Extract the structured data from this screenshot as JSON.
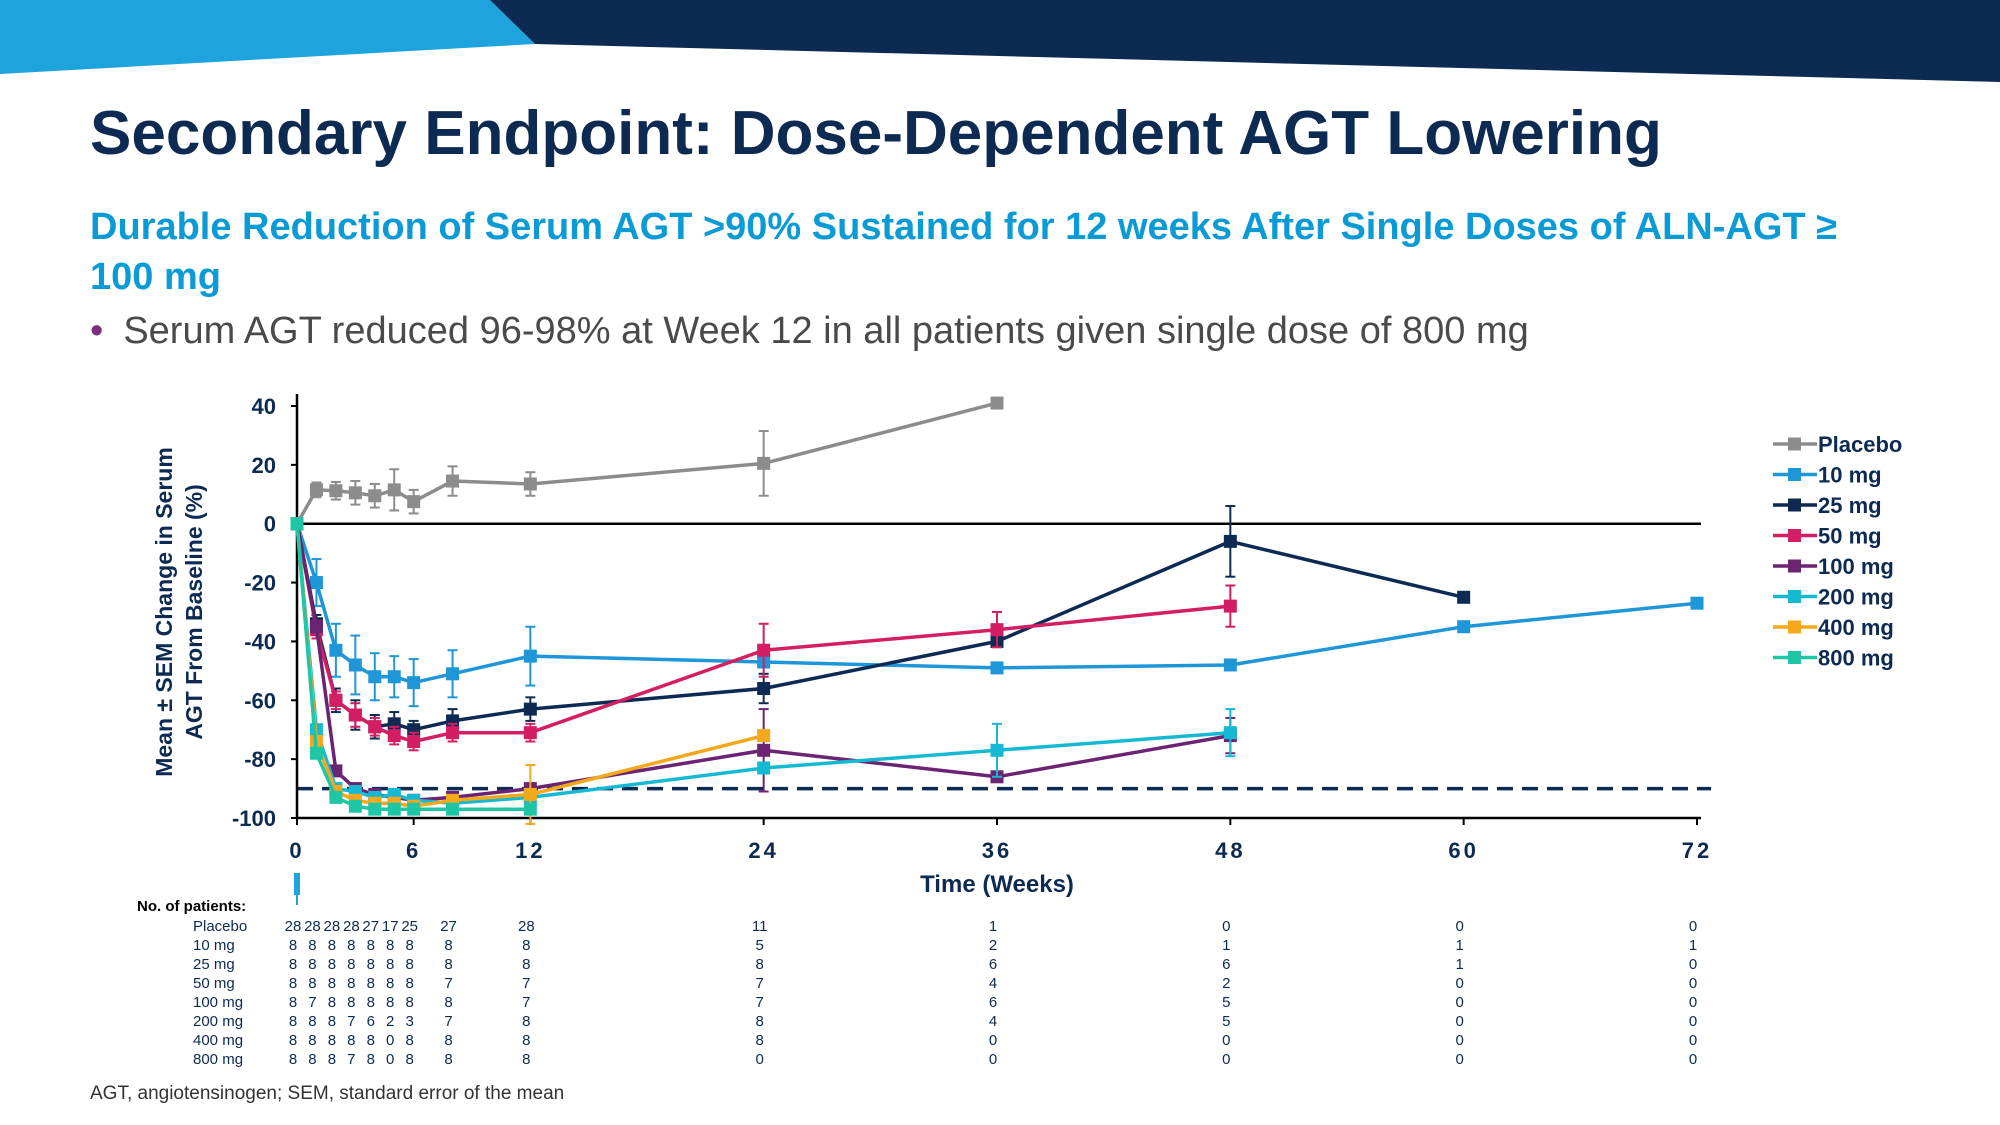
{
  "title": "Secondary Endpoint: Dose-Dependent AGT Lowering",
  "subtitle": "Durable Reduction of Serum AGT >90% Sustained for 12 weeks After Single Doses of ALN-AGT ≥ 100 mg",
  "bullet": "Serum AGT reduced 96-98% at Week 12 in all patients given single dose of 800 mg",
  "footnote": "AGT, angiotensinogen; SEM, standard error of the mean",
  "colors": {
    "banner_dark": "#0d2a52",
    "banner_light": "#1fa3dc",
    "title": "#0d2a52",
    "subtitle": "#0a9bd6",
    "bullet_dot": "#7b2d7e"
  },
  "chart_data": {
    "type": "line",
    "title": "",
    "xlabel": "Time (Weeks)",
    "ylabel_lines": [
      "Mean ± SEM Change in Serum",
      "AGT  From Baseline (%)"
    ],
    "xlim": [
      0,
      72
    ],
    "ylim": [
      -100,
      40
    ],
    "x_ticks": [
      0,
      6,
      12,
      24,
      36,
      48,
      60,
      72
    ],
    "y_ticks": [
      40,
      20,
      0,
      -20,
      -40,
      -60,
      -80,
      -100
    ],
    "reference_lines": [
      {
        "y": 0,
        "style": "solid"
      },
      {
        "y": -90,
        "style": "dashed"
      }
    ],
    "legend_position": "right",
    "series": [
      {
        "name": "Placebo",
        "color": "#8c8c8c",
        "points": [
          [
            0,
            0,
            0
          ],
          [
            1,
            11.5,
            2.5
          ],
          [
            2,
            11.2,
            3
          ],
          [
            3,
            10.5,
            4
          ],
          [
            4,
            9.5,
            4
          ],
          [
            5,
            11.5,
            7
          ],
          [
            6,
            7.5,
            4
          ],
          [
            8,
            14.5,
            5
          ],
          [
            12,
            13.5,
            4
          ],
          [
            24,
            20.5,
            11
          ],
          [
            36,
            41,
            0
          ]
        ]
      },
      {
        "name": "10 mg",
        "color": "#1e96d8",
        "points": [
          [
            0,
            0,
            0
          ],
          [
            1,
            -20,
            8
          ],
          [
            2,
            -43,
            9
          ],
          [
            3,
            -48,
            10
          ],
          [
            4,
            -52,
            8
          ],
          [
            5,
            -52,
            7
          ],
          [
            6,
            -54,
            8
          ],
          [
            8,
            -51,
            8
          ],
          [
            12,
            -45,
            10
          ],
          [
            24,
            -47,
            0
          ],
          [
            36,
            -49,
            0
          ],
          [
            48,
            -48,
            0
          ],
          [
            60,
            -35,
            0
          ],
          [
            72,
            -27,
            0
          ]
        ]
      },
      {
        "name": "25 mg",
        "color": "#0d2a52",
        "points": [
          [
            0,
            0,
            0
          ],
          [
            1,
            -34,
            3
          ],
          [
            2,
            -60,
            4
          ],
          [
            3,
            -65,
            5
          ],
          [
            4,
            -69,
            4
          ],
          [
            5,
            -68,
            4
          ],
          [
            6,
            -70,
            3
          ],
          [
            8,
            -67,
            4
          ],
          [
            12,
            -63,
            4
          ],
          [
            24,
            -56,
            5
          ],
          [
            36,
            -40,
            0
          ],
          [
            48,
            -6,
            12
          ],
          [
            60,
            -25,
            0
          ]
        ]
      },
      {
        "name": "50 mg",
        "color": "#d41e64",
        "points": [
          [
            0,
            0,
            0
          ],
          [
            1,
            -36,
            3
          ],
          [
            2,
            -60,
            3
          ],
          [
            3,
            -65,
            4
          ],
          [
            4,
            -69,
            3
          ],
          [
            5,
            -72,
            3
          ],
          [
            6,
            -74,
            3
          ],
          [
            8,
            -71,
            3
          ],
          [
            12,
            -71,
            3
          ],
          [
            24,
            -43,
            9
          ],
          [
            36,
            -36,
            6
          ],
          [
            48,
            -28,
            7
          ]
        ]
      },
      {
        "name": "100 mg",
        "color": "#6b2472",
        "points": [
          [
            0,
            0,
            0
          ],
          [
            1,
            -35,
            0
          ],
          [
            2,
            -84,
            0
          ],
          [
            3,
            -90,
            0
          ],
          [
            4,
            -92,
            0
          ],
          [
            5,
            -93,
            0
          ],
          [
            6,
            -94,
            0
          ],
          [
            8,
            -93,
            0
          ],
          [
            12,
            -90,
            0
          ],
          [
            24,
            -77,
            14
          ],
          [
            36,
            -86,
            0
          ],
          [
            48,
            -72,
            6
          ]
        ]
      },
      {
        "name": "200 mg",
        "color": "#16b9d4",
        "points": [
          [
            0,
            0,
            0
          ],
          [
            1,
            -70,
            0
          ],
          [
            2,
            -90,
            0
          ],
          [
            3,
            -91,
            0
          ],
          [
            4,
            -93,
            0
          ],
          [
            5,
            -92,
            0
          ],
          [
            6,
            -94,
            0
          ],
          [
            8,
            -95,
            0
          ],
          [
            12,
            -93,
            0
          ],
          [
            24,
            -83,
            0
          ],
          [
            36,
            -77,
            9
          ],
          [
            48,
            -71,
            8
          ]
        ]
      },
      {
        "name": "400 mg",
        "color": "#f5a81c",
        "points": [
          [
            0,
            0,
            0
          ],
          [
            1,
            -74,
            0
          ],
          [
            2,
            -91,
            0
          ],
          [
            3,
            -94,
            0
          ],
          [
            4,
            -95,
            0
          ],
          [
            5,
            -95,
            0
          ],
          [
            6,
            -96,
            0
          ],
          [
            8,
            -94,
            0
          ],
          [
            12,
            -92,
            10
          ],
          [
            24,
            -72,
            0
          ]
        ]
      },
      {
        "name": "800 mg",
        "color": "#1fc6a6",
        "points": [
          [
            0,
            0,
            0
          ],
          [
            1,
            -78,
            0
          ],
          [
            2,
            -93,
            0
          ],
          [
            3,
            -96,
            0
          ],
          [
            4,
            -97,
            0
          ],
          [
            5,
            -97,
            0
          ],
          [
            6,
            -97,
            0
          ],
          [
            8,
            -97,
            0
          ],
          [
            12,
            -97,
            0
          ]
        ]
      }
    ],
    "patients_table": {
      "header": "No. of patients:",
      "columns": [
        "0",
        "1",
        "2",
        "3",
        "4",
        "5",
        "6",
        "8",
        "12",
        "24",
        "36",
        "48",
        "60",
        "72"
      ],
      "rows": [
        {
          "label": "Placebo",
          "values": [
            "28",
            "28",
            "28",
            "28",
            "27",
            "17",
            "25",
            "27",
            "28",
            "11",
            "1",
            "0",
            "0",
            "0"
          ]
        },
        {
          "label": "10 mg",
          "values": [
            "8",
            "8",
            "8",
            "8",
            "8",
            "8",
            "8",
            "8",
            "8",
            "5",
            "2",
            "1",
            "1",
            "1"
          ]
        },
        {
          "label": "25 mg",
          "values": [
            "8",
            "8",
            "8",
            "8",
            "8",
            "8",
            "8",
            "8",
            "8",
            "8",
            "6",
            "6",
            "1",
            "0"
          ]
        },
        {
          "label": "50 mg",
          "values": [
            "8",
            "8",
            "8",
            "8",
            "8",
            "8",
            "8",
            "7",
            "7",
            "7",
            "4",
            "2",
            "0",
            "0"
          ]
        },
        {
          "label": "100 mg",
          "values": [
            "8",
            "7",
            "8",
            "8",
            "8",
            "8",
            "8",
            "8",
            "7",
            "7",
            "6",
            "5",
            "0",
            "0"
          ]
        },
        {
          "label": "200 mg",
          "values": [
            "8",
            "8",
            "8",
            "7",
            "6",
            "2",
            "3",
            "7",
            "8",
            "8",
            "4",
            "5",
            "0",
            "0"
          ]
        },
        {
          "label": "400 mg",
          "values": [
            "8",
            "8",
            "8",
            "8",
            "8",
            "0",
            "8",
            "8",
            "8",
            "8",
            "0",
            "0",
            "0",
            "0"
          ]
        },
        {
          "label": "800 mg",
          "values": [
            "8",
            "8",
            "8",
            "7",
            "8",
            "0",
            "8",
            "8",
            "8",
            "0",
            "0",
            "0",
            "0",
            "0"
          ]
        }
      ]
    }
  }
}
